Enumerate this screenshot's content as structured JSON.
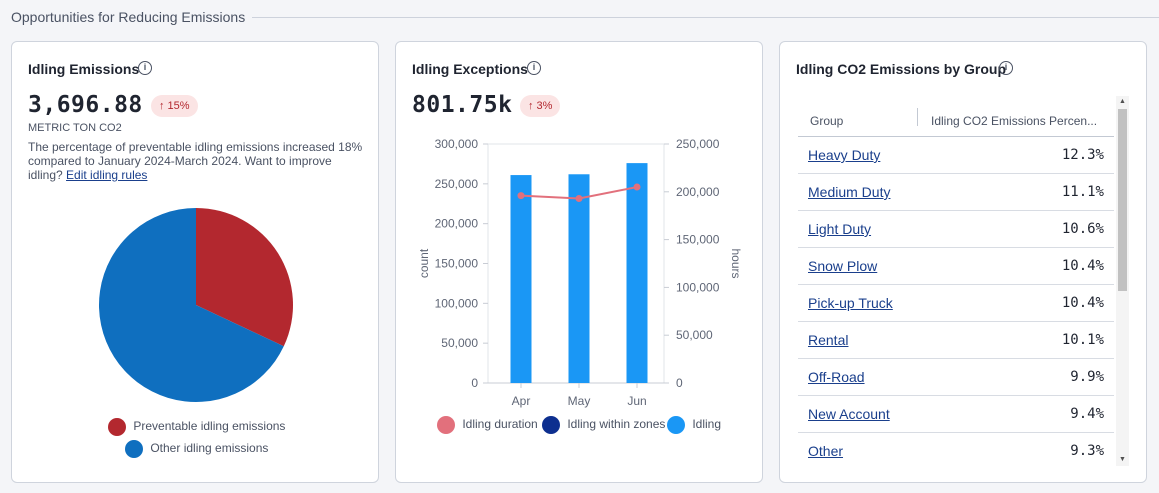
{
  "section": {
    "title": "Opportunities for Reducing Emissions"
  },
  "idling_emissions": {
    "title": "Idling Emissions",
    "value": "3,696.88",
    "delta": "↑ 15%",
    "unit": "METRIC TON CO2",
    "description": "The percentage of preventable idling emissions increased 18% compared to January 2024-March 2024. Want to improve idling?",
    "link": "Edit idling rules",
    "legend": [
      {
        "label": "Preventable idling emissions",
        "color": "#b3282f"
      },
      {
        "label": "Other idling emissions",
        "color": "#0f6fbf"
      }
    ],
    "chart_data": {
      "type": "pie",
      "slices": [
        {
          "label": "Preventable idling emissions",
          "value": 32,
          "color": "#b3282f"
        },
        {
          "label": "Other idling emissions",
          "value": 68,
          "color": "#0f6fbf"
        }
      ]
    }
  },
  "idling_exceptions": {
    "title": "Idling Exceptions",
    "value": "801.75k",
    "delta": "↑ 3%",
    "left_axis_label": "count",
    "right_axis_label": "hours",
    "legend": [
      {
        "label": "Idling duration",
        "color": "#e2707c"
      },
      {
        "label": "Idling within zones",
        "color": "#0d2f8f"
      },
      {
        "label": "Idling",
        "color": "#1a97f5"
      }
    ],
    "chart_data": {
      "type": "bar",
      "categories": [
        "Apr",
        "May",
        "Jun"
      ],
      "left_ticks": [
        "300,000",
        "250,000",
        "200,000",
        "150,000",
        "100,000",
        "50,000",
        "0"
      ],
      "right_ticks": [
        "250,000",
        "200,000",
        "150,000",
        "100,000",
        "50,000",
        "0"
      ],
      "ylim_left": [
        0,
        300000
      ],
      "ylim_right": [
        0,
        250000
      ],
      "series": [
        {
          "name": "Idling",
          "axis": "left",
          "kind": "bar",
          "color": "#1a97f5",
          "values": [
            261000,
            262000,
            276000
          ]
        },
        {
          "name": "Idling within zones",
          "axis": "left",
          "kind": "bar",
          "color": "#0d2f8f",
          "values": [
            0,
            0,
            0
          ]
        },
        {
          "name": "Idling duration",
          "axis": "right",
          "kind": "line",
          "color": "#e2707c",
          "values": [
            196000,
            193000,
            205000
          ]
        }
      ]
    }
  },
  "co2_by_group": {
    "title": "Idling CO2 Emissions by Group",
    "columns": [
      "Group",
      "Idling CO2 Emissions Percen..."
    ],
    "rows": [
      {
        "group": "Heavy Duty",
        "percent": "12.3%"
      },
      {
        "group": "Medium Duty",
        "percent": "11.1%"
      },
      {
        "group": "Light Duty",
        "percent": "10.6%"
      },
      {
        "group": "Snow Plow",
        "percent": "10.4%"
      },
      {
        "group": "Pick-up Truck",
        "percent": "10.4%"
      },
      {
        "group": "Rental",
        "percent": "10.1%"
      },
      {
        "group": "Off-Road",
        "percent": "9.9%"
      },
      {
        "group": "New Account",
        "percent": "9.4%"
      },
      {
        "group": "Other",
        "percent": "9.3%"
      }
    ]
  },
  "icons": {
    "info": "info-icon",
    "scroll_up": "scroll-up-arrow-icon",
    "scroll_down": "scroll-down-arrow-icon"
  }
}
